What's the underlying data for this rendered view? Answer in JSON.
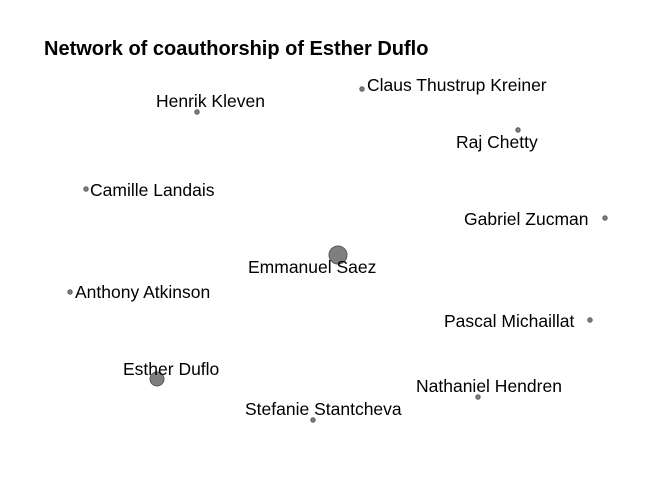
{
  "title": "Network of coauthorship of Esther Duflo",
  "node_color": "#7f7f7f",
  "nodes": [
    {
      "id": "henrik-kleven",
      "label": "Henrik Kleven",
      "size": "small"
    },
    {
      "id": "claus-thustrup-kreiner",
      "label": "Claus Thustrup Kreiner",
      "size": "small"
    },
    {
      "id": "raj-chetty",
      "label": "Raj Chetty",
      "size": "small"
    },
    {
      "id": "camille-landais",
      "label": "Camille Landais",
      "size": "small"
    },
    {
      "id": "gabriel-zucman",
      "label": "Gabriel Zucman",
      "size": "small"
    },
    {
      "id": "emmanuel-saez",
      "label": "Emmanuel Saez",
      "size": "large"
    },
    {
      "id": "anthony-atkinson",
      "label": "Anthony Atkinson",
      "size": "small"
    },
    {
      "id": "pascal-michaillat",
      "label": "Pascal Michaillat",
      "size": "small"
    },
    {
      "id": "esther-duflo",
      "label": "Esther Duflo",
      "size": "medium"
    },
    {
      "id": "nathaniel-hendren",
      "label": "Nathaniel Hendren",
      "size": "small"
    },
    {
      "id": "stefanie-stantcheva",
      "label": "Stefanie Stantcheva",
      "size": "small"
    }
  ]
}
